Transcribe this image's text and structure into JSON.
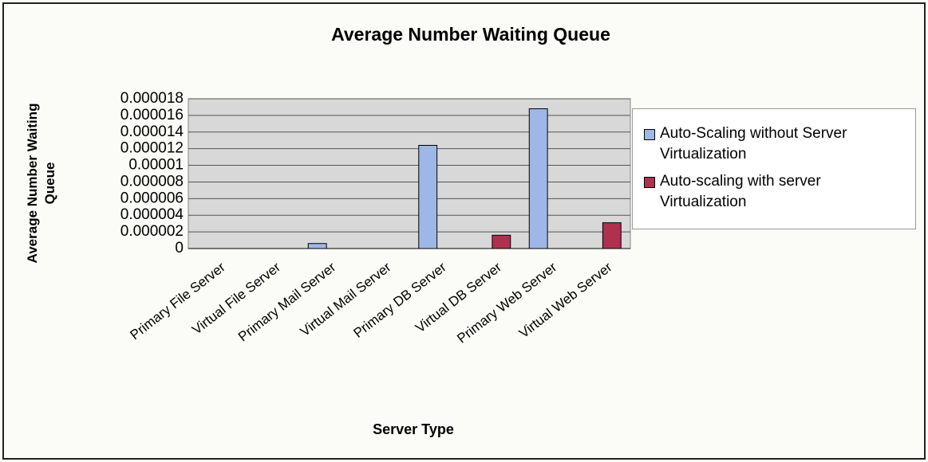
{
  "chart_data": {
    "type": "bar",
    "title": "Average Number Waiting Queue",
    "x_label": "Server Type",
    "y_label": "Average Number Waiting Queue",
    "categories": [
      "Primary File Server",
      "Virtual File Server",
      "Primary Mail Server",
      "Virtual Mail Server",
      "Primary DB Server",
      "Virtual DB Server",
      "Primary Web Server",
      "Virtual Web Server"
    ],
    "series": [
      {
        "name": "Auto-Scaling without Server Virtualization",
        "color": "#9db8e6",
        "values": [
          0,
          0,
          6e-07,
          0,
          1.24e-05,
          0,
          1.68e-05,
          0
        ]
      },
      {
        "name": "Auto-scaling with server Virtualization",
        "color": "#b03050",
        "values": [
          0,
          0,
          0,
          0,
          0,
          1.6e-06,
          0,
          3.1e-06
        ]
      }
    ],
    "ylim": [
      0,
      1.8e-05
    ],
    "yticks": [
      0,
      2e-06,
      4e-06,
      6e-06,
      8e-06,
      1e-05,
      1.2e-05,
      1.4e-05,
      1.6e-05,
      1.8e-05
    ],
    "grid": true,
    "legend": "right"
  }
}
